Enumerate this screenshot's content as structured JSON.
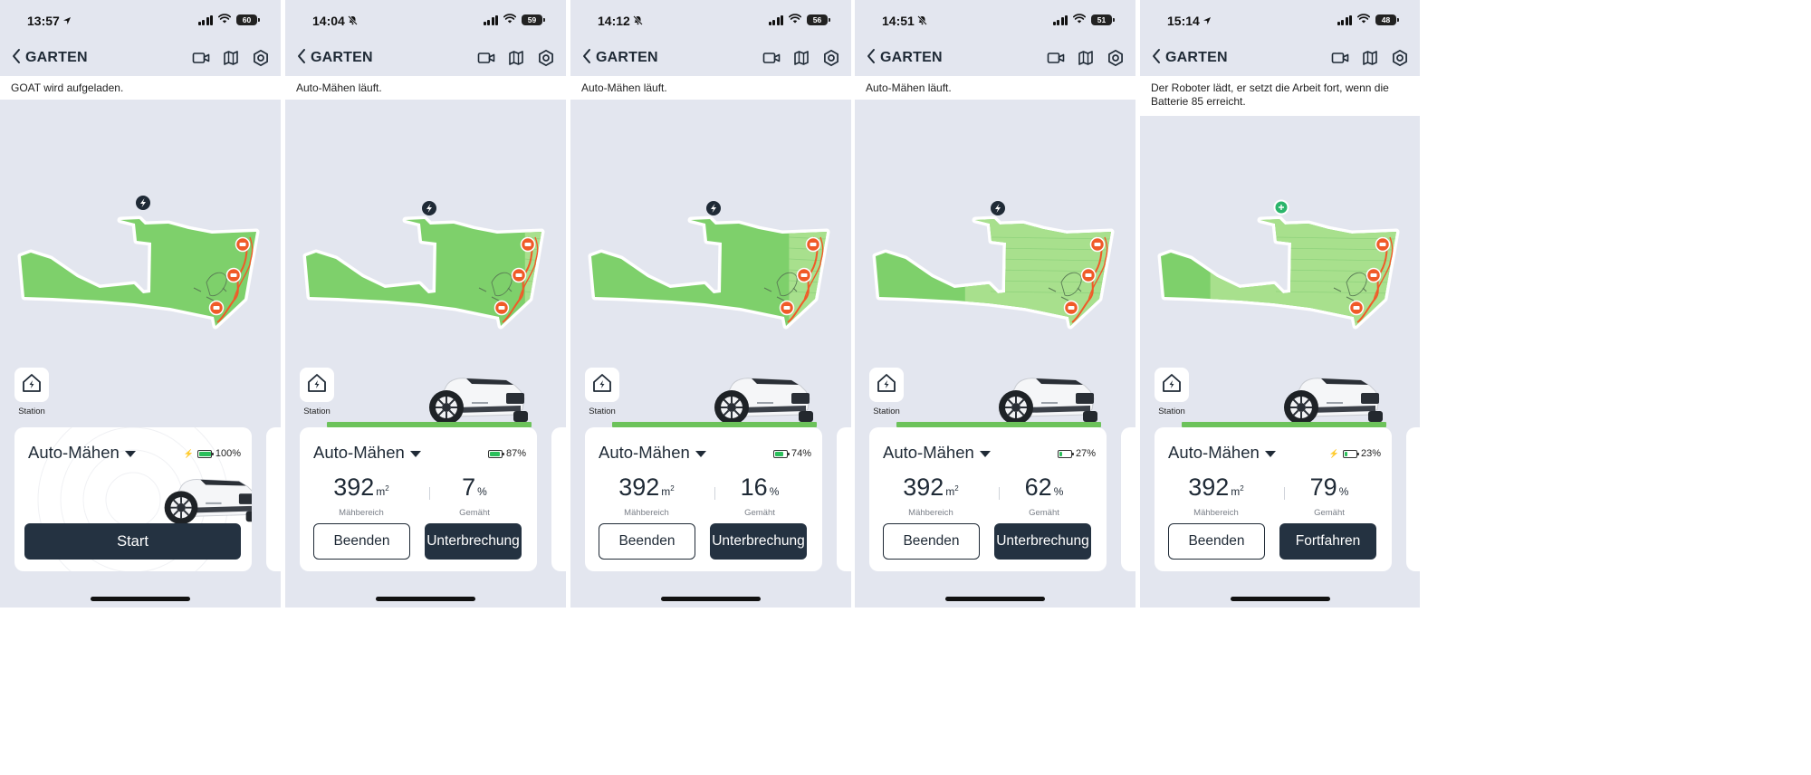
{
  "nav_title": "GARTEN",
  "station_label": "Station",
  "mode_label": "Auto-Mähen",
  "area_label": "Mähbereich",
  "mowed_label": "Gemäht",
  "area_unit": "m",
  "area_unit_sup": "2",
  "percent_unit": "%",
  "buttons": {
    "start": "Start",
    "end": "Beenden",
    "pause": "Unterbrechung",
    "resume": "Fortfahren"
  },
  "colors": {
    "accent_dark": "#243241",
    "lawn": "#7ed06b",
    "lawn_mowed": "#a8e08d",
    "warning": "#f05a28",
    "battery_green": "#2bbf5b",
    "background": "#e3e6ef"
  },
  "icons": {
    "nav": [
      "camera-icon",
      "map-icon",
      "settings-icon"
    ],
    "station": "charging-station-icon"
  },
  "screens": [
    {
      "time": "13:57",
      "status_glyph": "location-arrow",
      "battery": "60",
      "banner": "GOAT wird aufgeladen.",
      "state": "idle",
      "charging": true,
      "battery_pct_text": "100%",
      "battery_level": 1.0
    },
    {
      "time": "14:04",
      "status_glyph": "bell-muted",
      "battery": "59",
      "banner": "Auto-Mähen läuft.",
      "state": "running",
      "charging": false,
      "battery_pct_text": "87%",
      "battery_level": 0.87,
      "area": "392",
      "mowed": "7"
    },
    {
      "time": "14:12",
      "status_glyph": "bell-muted",
      "battery": "56",
      "banner": "Auto-Mähen läuft.",
      "state": "running",
      "charging": false,
      "battery_pct_text": "74%",
      "battery_level": 0.74,
      "area": "392",
      "mowed": "16"
    },
    {
      "time": "14:51",
      "status_glyph": "bell-muted",
      "battery": "51",
      "banner": "Auto-Mähen läuft.",
      "state": "running",
      "charging": false,
      "battery_pct_text": "27%",
      "battery_level": 0.27,
      "area": "392",
      "mowed": "62"
    },
    {
      "time": "15:14",
      "status_glyph": "location-arrow",
      "battery": "48",
      "banner": "Der Roboter lädt, er setzt die Arbeit fort, wenn die Batterie 85 erreicht.",
      "state": "paused",
      "charging": true,
      "battery_pct_text": "23%",
      "battery_level": 0.23,
      "area": "392",
      "mowed": "79"
    }
  ]
}
